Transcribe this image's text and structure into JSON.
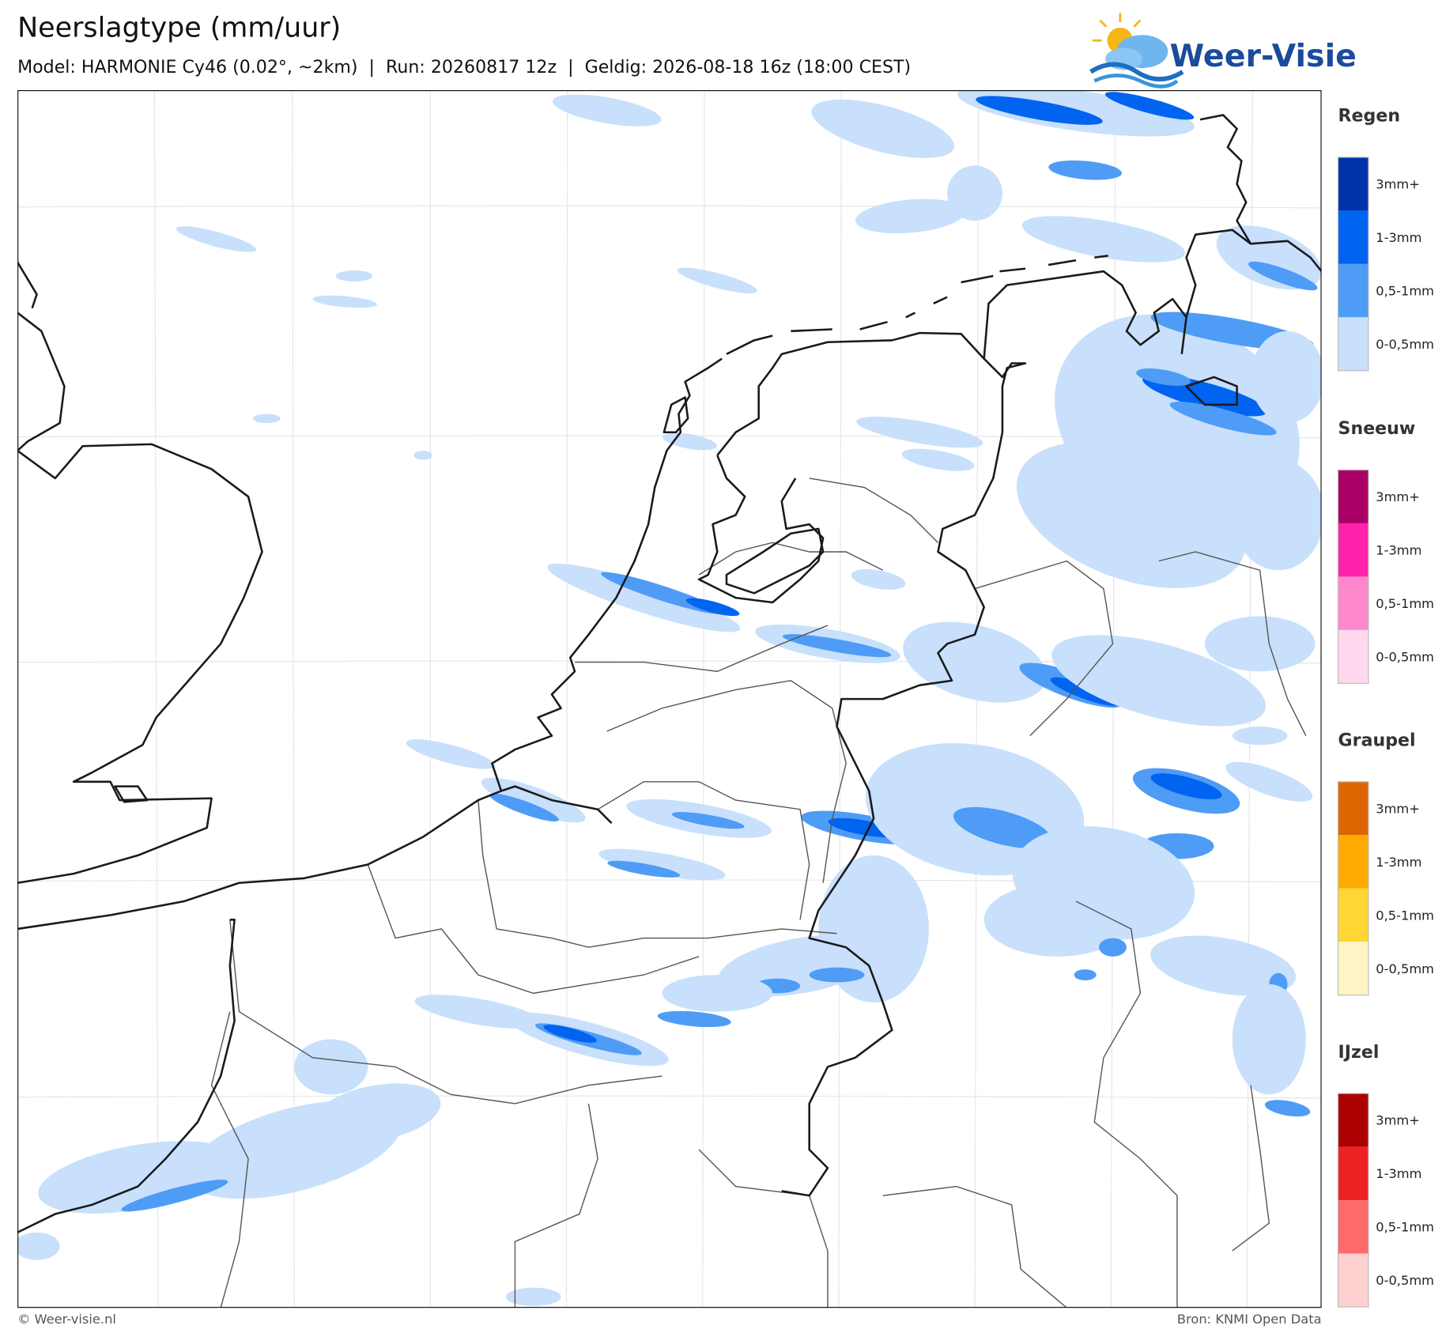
{
  "header": {
    "title": "Neerslagtype (mm/uur)",
    "subtitle": "Model: HARMONIE Cy46 (0.02°, ~2km)  |  Run: 20260817 12z  |  Geldig: 2026-08-18 16z (18:00 CEST)"
  },
  "logo": {
    "text": "Weer-Visie"
  },
  "legend": [
    {
      "title": "Regen",
      "items": [
        {
          "label": "3mm+",
          "color": "#0033aa"
        },
        {
          "label": "1-3mm",
          "color": "#0064f0"
        },
        {
          "label": "0,5-1mm",
          "color": "#4f9cf6"
        },
        {
          "label": "0-0,5mm",
          "color": "#c8e0fb"
        }
      ]
    },
    {
      "title": "Sneeuw",
      "items": [
        {
          "label": "3mm+",
          "color": "#aa0066"
        },
        {
          "label": "1-3mm",
          "color": "#ff22aa"
        },
        {
          "label": "0,5-1mm",
          "color": "#ff88cc"
        },
        {
          "label": "0-0,5mm",
          "color": "#ffd8ee"
        }
      ]
    },
    {
      "title": "Graupel",
      "items": [
        {
          "label": "3mm+",
          "color": "#dd6600"
        },
        {
          "label": "1-3mm",
          "color": "#ffaa00"
        },
        {
          "label": "0,5-1mm",
          "color": "#ffd633"
        },
        {
          "label": "0-0,5mm",
          "color": "#fff4c6"
        }
      ]
    },
    {
      "title": "IJzel",
      "items": [
        {
          "label": "3mm+",
          "color": "#aa0000"
        },
        {
          "label": "1-3mm",
          "color": "#ee2222"
        },
        {
          "label": "0,5-1mm",
          "color": "#ff6a6a"
        },
        {
          "label": "0-0,5mm",
          "color": "#ffd0d0"
        }
      ]
    }
  ],
  "footer": {
    "left": "© Weer-visie.nl",
    "right": "Bron: KNMI Open Data"
  }
}
